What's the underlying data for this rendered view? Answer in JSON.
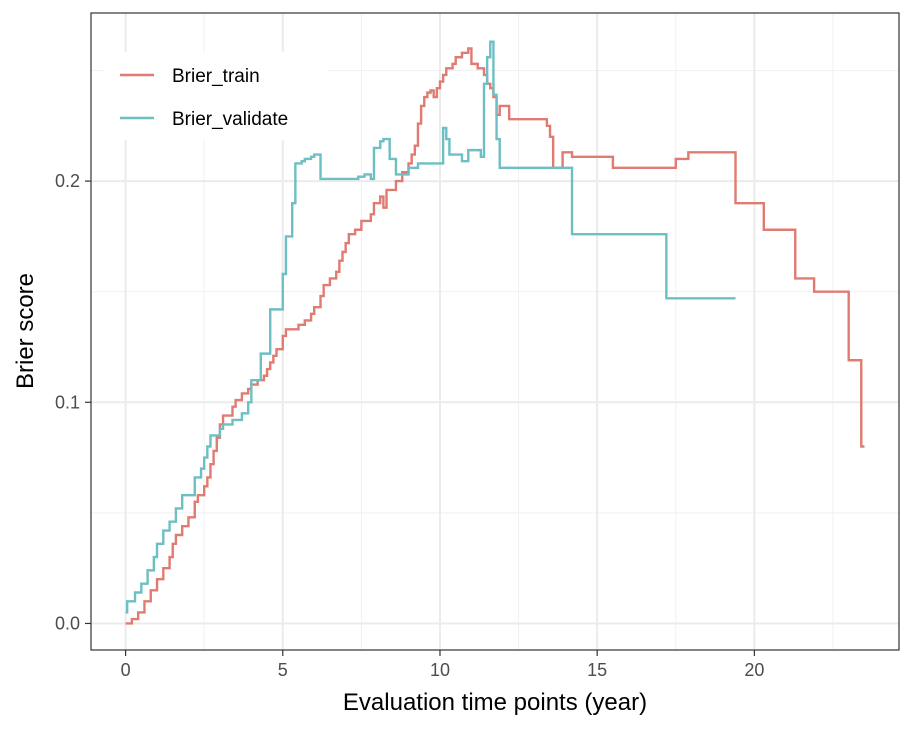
{
  "chart_data": {
    "type": "line",
    "step": true,
    "xlabel": "Evaluation time points (year)",
    "ylabel": "Brier score",
    "xlim": [
      -1.1,
      24.6
    ],
    "ylim": [
      -0.012,
      0.276
    ],
    "x_ticks": [
      0,
      5,
      10,
      15,
      20
    ],
    "x_tick_labels": [
      "0",
      "5",
      "10",
      "15",
      "20"
    ],
    "y_ticks": [
      0.0,
      0.1,
      0.2
    ],
    "y_tick_labels": [
      "0.0",
      "0.1",
      "0.2"
    ],
    "grid": true,
    "legend_position": "top-left",
    "series": [
      {
        "name": "Brier_train",
        "color": "#E07B72",
        "points": [
          [
            0.0,
            0.0
          ],
          [
            0.2,
            0.002
          ],
          [
            0.4,
            0.005
          ],
          [
            0.6,
            0.01
          ],
          [
            0.8,
            0.015
          ],
          [
            1.0,
            0.02
          ],
          [
            1.2,
            0.025
          ],
          [
            1.4,
            0.03
          ],
          [
            1.5,
            0.036
          ],
          [
            1.6,
            0.04
          ],
          [
            1.8,
            0.044
          ],
          [
            2.0,
            0.048
          ],
          [
            2.2,
            0.055
          ],
          [
            2.3,
            0.058
          ],
          [
            2.5,
            0.062
          ],
          [
            2.6,
            0.066
          ],
          [
            2.7,
            0.072
          ],
          [
            2.8,
            0.078
          ],
          [
            2.9,
            0.084
          ],
          [
            3.0,
            0.09
          ],
          [
            3.1,
            0.094
          ],
          [
            3.3,
            0.094
          ],
          [
            3.4,
            0.098
          ],
          [
            3.5,
            0.101
          ],
          [
            3.7,
            0.104
          ],
          [
            3.9,
            0.106
          ],
          [
            4.0,
            0.108
          ],
          [
            4.2,
            0.11
          ],
          [
            4.4,
            0.112
          ],
          [
            4.5,
            0.115
          ],
          [
            4.6,
            0.118
          ],
          [
            4.7,
            0.121
          ],
          [
            4.8,
            0.124
          ],
          [
            5.0,
            0.13
          ],
          [
            5.1,
            0.133
          ],
          [
            5.5,
            0.135
          ],
          [
            5.7,
            0.137
          ],
          [
            5.9,
            0.14
          ],
          [
            6.0,
            0.143
          ],
          [
            6.2,
            0.148
          ],
          [
            6.3,
            0.153
          ],
          [
            6.5,
            0.156
          ],
          [
            6.7,
            0.159
          ],
          [
            6.8,
            0.164
          ],
          [
            6.9,
            0.168
          ],
          [
            7.0,
            0.172
          ],
          [
            7.1,
            0.176
          ],
          [
            7.3,
            0.178
          ],
          [
            7.5,
            0.182
          ],
          [
            7.8,
            0.185
          ],
          [
            7.9,
            0.19
          ],
          [
            8.1,
            0.193
          ],
          [
            8.2,
            0.188
          ],
          [
            8.3,
            0.196
          ],
          [
            8.6,
            0.2
          ],
          [
            8.8,
            0.204
          ],
          [
            9.0,
            0.208
          ],
          [
            9.1,
            0.212
          ],
          [
            9.2,
            0.216
          ],
          [
            9.3,
            0.226
          ],
          [
            9.4,
            0.234
          ],
          [
            9.5,
            0.238
          ],
          [
            9.6,
            0.24
          ],
          [
            9.7,
            0.241
          ],
          [
            9.8,
            0.238
          ],
          [
            9.9,
            0.242
          ],
          [
            10.0,
            0.245
          ],
          [
            10.1,
            0.248
          ],
          [
            10.2,
            0.251
          ],
          [
            10.4,
            0.253
          ],
          [
            10.5,
            0.256
          ],
          [
            10.7,
            0.258
          ],
          [
            10.9,
            0.26
          ],
          [
            11.0,
            0.253
          ],
          [
            11.2,
            0.251
          ],
          [
            11.4,
            0.248
          ],
          [
            11.5,
            0.244
          ],
          [
            11.6,
            0.242
          ],
          [
            11.7,
            0.238
          ],
          [
            11.8,
            0.23
          ],
          [
            11.9,
            0.234
          ],
          [
            12.2,
            0.228
          ],
          [
            13.4,
            0.225
          ],
          [
            13.5,
            0.22
          ],
          [
            13.6,
            0.206
          ],
          [
            13.9,
            0.213
          ],
          [
            14.2,
            0.211
          ],
          [
            15.5,
            0.206
          ],
          [
            17.5,
            0.21
          ],
          [
            17.9,
            0.213
          ],
          [
            19.4,
            0.19
          ],
          [
            20.3,
            0.178
          ],
          [
            21.3,
            0.156
          ],
          [
            21.9,
            0.15
          ],
          [
            23.0,
            0.119
          ],
          [
            23.4,
            0.08
          ],
          [
            23.5,
            0.08
          ]
        ]
      },
      {
        "name": "Brier_validate",
        "color": "#6EBFC3",
        "points": [
          [
            0.0,
            0.005
          ],
          [
            0.05,
            0.01
          ],
          [
            0.3,
            0.014
          ],
          [
            0.5,
            0.018
          ],
          [
            0.7,
            0.024
          ],
          [
            0.9,
            0.03
          ],
          [
            1.0,
            0.036
          ],
          [
            1.2,
            0.042
          ],
          [
            1.4,
            0.046
          ],
          [
            1.6,
            0.052
          ],
          [
            1.8,
            0.058
          ],
          [
            2.1,
            0.058
          ],
          [
            2.2,
            0.066
          ],
          [
            2.4,
            0.07
          ],
          [
            2.5,
            0.075
          ],
          [
            2.6,
            0.08
          ],
          [
            2.7,
            0.085
          ],
          [
            3.0,
            0.088
          ],
          [
            3.1,
            0.09
          ],
          [
            3.4,
            0.092
          ],
          [
            3.7,
            0.095
          ],
          [
            3.9,
            0.1
          ],
          [
            4.0,
            0.11
          ],
          [
            4.2,
            0.11
          ],
          [
            4.3,
            0.122
          ],
          [
            4.6,
            0.142
          ],
          [
            5.0,
            0.158
          ],
          [
            5.1,
            0.175
          ],
          [
            5.3,
            0.19
          ],
          [
            5.4,
            0.208
          ],
          [
            5.6,
            0.209
          ],
          [
            5.7,
            0.21
          ],
          [
            5.9,
            0.211
          ],
          [
            6.0,
            0.212
          ],
          [
            6.2,
            0.201
          ],
          [
            7.4,
            0.202
          ],
          [
            7.6,
            0.203
          ],
          [
            7.8,
            0.201
          ],
          [
            7.9,
            0.215
          ],
          [
            8.1,
            0.218
          ],
          [
            8.2,
            0.219
          ],
          [
            8.4,
            0.21
          ],
          [
            8.6,
            0.203
          ],
          [
            9.0,
            0.206
          ],
          [
            9.2,
            0.206
          ],
          [
            9.3,
            0.208
          ],
          [
            9.5,
            0.208
          ],
          [
            10.0,
            0.208
          ],
          [
            10.1,
            0.224
          ],
          [
            10.2,
            0.219
          ],
          [
            10.3,
            0.212
          ],
          [
            10.6,
            0.212
          ],
          [
            10.7,
            0.209
          ],
          [
            10.9,
            0.214
          ],
          [
            11.3,
            0.211
          ],
          [
            11.4,
            0.244
          ],
          [
            11.5,
            0.256
          ],
          [
            11.6,
            0.263
          ],
          [
            11.7,
            0.239
          ],
          [
            11.8,
            0.219
          ],
          [
            11.9,
            0.206
          ],
          [
            12.2,
            0.206
          ],
          [
            12.4,
            0.206
          ],
          [
            14.2,
            0.176
          ],
          [
            17.2,
            0.147
          ],
          [
            19.4,
            0.147
          ]
        ]
      }
    ]
  }
}
